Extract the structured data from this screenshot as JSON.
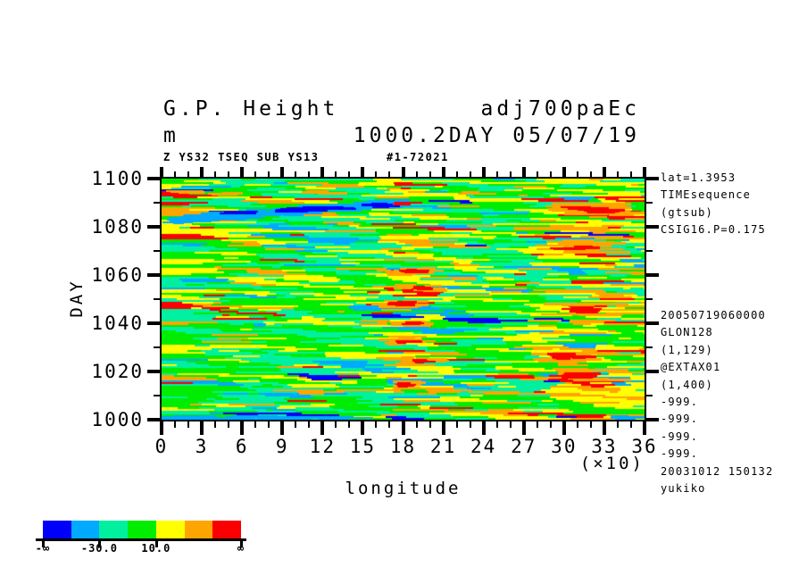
{
  "header": {
    "title_left_1": "G.P. Height",
    "title_right_1": "adj700paEc",
    "title_left_2": "m",
    "title_right_2": "1000.2DAY 05/07/19",
    "subheader_left": "Z YS32 TSEQ SUB YS13",
    "subheader_right": "#1-72021"
  },
  "side_notes": {
    "top_block": [
      "lat=1.3953",
      "TIMEsequence",
      "(gtsub)",
      "CSIG16.P=0.175"
    ],
    "bottom_block": [
      "20050719060000",
      "GLON128",
      "(1,129)",
      "@EXTAX01",
      "(1,400)",
      "-999.",
      "-999.",
      "-999.",
      "-999.",
      "20031012 150132",
      "yukiko"
    ]
  },
  "chart_data": {
    "type": "heatmap",
    "title": "G.P. Height",
    "units": "m",
    "xlabel": "longitude",
    "x_scale_note": "(×10)",
    "ylabel": "DAY",
    "xlim": [
      0,
      36
    ],
    "ylim": [
      1000,
      1100
    ],
    "x_major_ticks": [
      0,
      3,
      6,
      9,
      12,
      15,
      18,
      21,
      24,
      27,
      30,
      33,
      36
    ],
    "x_minor_step": 1,
    "y_major_ticks": [
      1000,
      1020,
      1040,
      1060,
      1080,
      1100
    ],
    "y_minor_step": 10,
    "grid": false,
    "colorbar": {
      "colors": [
        "#0000FA",
        "#00AAFF",
        "#00F0A0",
        "#00EC00",
        "#FFFF00",
        "#FFA500",
        "#FA0000"
      ],
      "tick_labels": [
        "-∞",
        "-30.0",
        "10.0",
        "∞"
      ],
      "label_boundary_index": [
        0,
        2,
        4,
        7
      ]
    },
    "field": {
      "description": "noisy horizontally-streaked anomaly field, mostly green/turquoise; yellow-orange-red activity bands near longitude 17-20 and 28-36; blue streak near day 1083-1090 longitudes 1-18; blue line along day 1000",
      "seed": 1234567,
      "palette": {
        "blue": "#0000FA",
        "azure": "#00AAFF",
        "turquoise": "#00F0A0",
        "green": "#00EC00",
        "yellow": "#FFFF00",
        "orange": "#FFA500",
        "red": "#FA0000"
      },
      "base_weights": {
        "green": 0.335,
        "turquoise": 0.315,
        "yellow": 0.195,
        "azure": 0.05,
        "orange": 0.073,
        "red": 0.022,
        "blue": 0.01
      },
      "zones": [
        {
          "x_range": [
            16.8,
            20.5
          ],
          "weights": {
            "green": 0.27,
            "turquoise": 0.17,
            "yellow": 0.3,
            "orange": 0.14,
            "red": 0.06,
            "azure": 0.05,
            "blue": 0.01
          }
        },
        {
          "x_range": [
            27.8,
            36
          ],
          "weights": {
            "green": 0.25,
            "turquoise": 0.15,
            "yellow": 0.31,
            "orange": 0.17,
            "red": 0.07,
            "azure": 0.04,
            "blue": 0.01
          }
        }
      ],
      "features": [
        {
          "kind": "band",
          "color": "azure",
          "from": [
            1,
            1082.8
          ],
          "to": [
            17.5,
            1089.6
          ],
          "halfwidth_days": 1.5,
          "count": 110,
          "runlen": [
            8,
            42
          ],
          "thickness": [
            2,
            3
          ]
        },
        {
          "kind": "blobs",
          "color": "blue",
          "points": [
            [
              9.6,
              1086.9
            ],
            [
              10.6,
              1087.1
            ],
            [
              12.9,
              1087.8
            ],
            [
              16.2,
              1088.8
            ],
            [
              5.8,
              1085.9
            ],
            [
              11.5,
              1087.3
            ]
          ],
          "size": [
            2.0,
            1.6
          ],
          "runs": 7
        },
        {
          "kind": "band",
          "color": "azure",
          "from": [
            0,
            1000.7
          ],
          "to": [
            15,
            1000.7
          ],
          "halfwidth_days": 0.7,
          "count": 32,
          "runlen": [
            12,
            50
          ],
          "thickness": [
            2,
            3
          ]
        },
        {
          "kind": "blobs",
          "color": "azure",
          "points": [
            [
              35,
              1000.9
            ],
            [
              34,
              1001.2
            ]
          ],
          "size": [
            1.6,
            0.9
          ],
          "runs": 5
        },
        {
          "kind": "blobs",
          "color": "red",
          "halo": "orange",
          "points": [
            [
              31.3,
              1087.6
            ],
            [
              32.8,
              1087.0
            ],
            [
              30.9,
              1071.8
            ],
            [
              31.4,
              1045.8
            ],
            [
              31.0,
              1018.5
            ],
            [
              30.6,
              1026.5
            ]
          ],
          "size": [
            2.4,
            2.8
          ],
          "runs": 9
        },
        {
          "kind": "blobs",
          "color": "red",
          "halo": "orange",
          "points": [
            [
              18.9,
              1061.5
            ],
            [
              19.3,
              1054.5
            ],
            [
              18.8,
              1040.0
            ],
            [
              18.5,
              1032.5
            ],
            [
              19.5,
              1024.5
            ],
            [
              18.3,
              1014.5
            ],
            [
              17.9,
              1048.0
            ]
          ],
          "size": [
            1.5,
            1.6
          ],
          "runs": 6
        },
        {
          "kind": "blobs",
          "color": "orange",
          "points": [
            [
              2.0,
              1094.5
            ],
            [
              5.0,
              1093.8
            ],
            [
              12.0,
              1094.2
            ]
          ],
          "size": [
            2.2,
            1.0
          ],
          "runs": 5
        }
      ]
    }
  }
}
